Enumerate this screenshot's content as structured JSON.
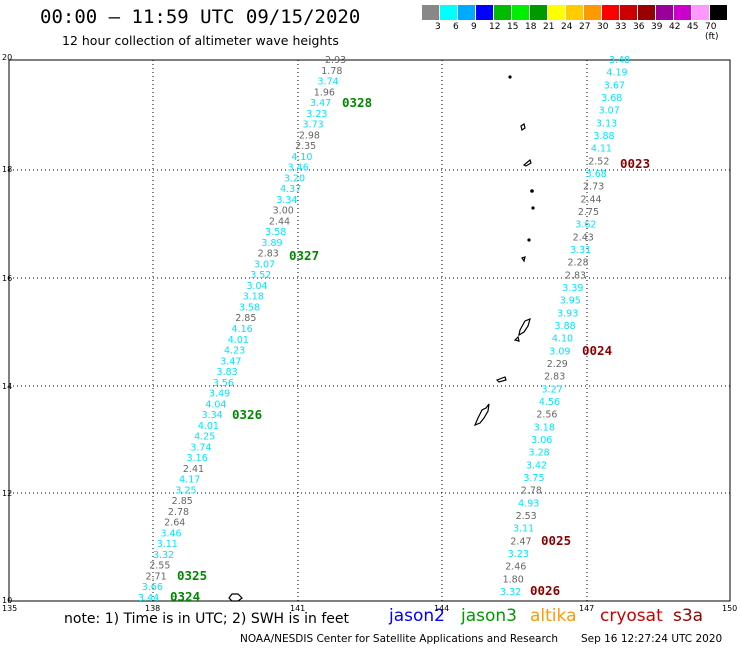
{
  "title": "00:00 — 11:59 UTC 09/15/2020",
  "subtitle": "12 hour collection of altimeter wave heights",
  "legend": {
    "colors": [
      "#888888",
      "#00ffff",
      "#00aaff",
      "#0000ff",
      "#00bb00",
      "#00ee00",
      "#009900",
      "#ffff00",
      "#ffcc00",
      "#ff9900",
      "#ff0000",
      "#cc0000",
      "#990000",
      "#990099",
      "#cc00cc",
      "#ff99ff",
      "#000000"
    ],
    "labels": [
      "3",
      "6",
      "9",
      "12",
      "15",
      "18",
      "21",
      "24",
      "27",
      "30",
      "33",
      "36",
      "39",
      "42",
      "45",
      "70 (ft)"
    ]
  },
  "axes": {
    "lon_ticks": [
      "135",
      "138",
      "141",
      "144",
      "147",
      "150"
    ],
    "lat_ticks": [
      "10",
      "12",
      "14",
      "16",
      "18",
      "20"
    ]
  },
  "note": "note: 1) Time is in UTC; 2) SWH is in feet",
  "satellites": [
    {
      "name": "jason2",
      "color": "#0000ff"
    },
    {
      "name": "jason3",
      "color": "#009900"
    },
    {
      "name": "altika",
      "color": "#ff9900"
    },
    {
      "name": "cryosat",
      "color": "#cc0000"
    },
    {
      "name": "s3a",
      "color": "#990000"
    }
  ],
  "credit": "NOAA/NESDIS Center for Satellite Applications and Research",
  "timestamp": "Sep 16 12:27:24 UTC 2020",
  "track_west": {
    "values": [
      "2.93",
      "1.78",
      "3.74",
      "1.96",
      "3.47",
      "3.23",
      "3.73",
      "2.98",
      "2.35",
      "4.10",
      "3.46",
      "3.20",
      "4.37",
      "3.34",
      "3.00",
      "2.44",
      "3.58",
      "3.89",
      "2.83",
      "3.07",
      "3.52",
      "3.04",
      "3.18",
      "3.58",
      "2.85",
      "4.16",
      "4.01",
      "4.23",
      "3.47",
      "3.83",
      "3.56",
      "3.49",
      "4.04",
      "3.34",
      "4.01",
      "4.25",
      "3.74",
      "3.16",
      "2.41",
      "4.17",
      "3.25",
      "2.85",
      "2.78",
      "2.64",
      "3.46",
      "3.11",
      "3.32",
      "2.55",
      "2.71",
      "3.66",
      "3.44"
    ],
    "colors": [
      "g",
      "g",
      "c",
      "g",
      "c",
      "c",
      "c",
      "g",
      "g",
      "c",
      "c",
      "c",
      "c",
      "c",
      "g",
      "g",
      "c",
      "c",
      "g",
      "c",
      "c",
      "c",
      "c",
      "c",
      "g",
      "c",
      "c",
      "c",
      "c",
      "c",
      "c",
      "c",
      "c",
      "c",
      "c",
      "c",
      "c",
      "c",
      "g",
      "c",
      "c",
      "g",
      "g",
      "g",
      "c",
      "c",
      "c",
      "g",
      "g",
      "c",
      "c"
    ],
    "times": [
      "0328",
      "0327",
      "0326",
      "0325",
      "0324"
    ]
  },
  "track_east": {
    "values": [
      "3.48",
      "4.19",
      "3.67",
      "3.68",
      "3.07",
      "3.13",
      "3.88",
      "4.11",
      "2.52",
      "3.68",
      "2.73",
      "2.44",
      "2.75",
      "3.62",
      "2.43",
      "3.31",
      "2.28",
      "2.83",
      "3.39",
      "3.95",
      "3.93",
      "3.88",
      "4.10",
      "3.09",
      "2.29",
      "2.83",
      "3.27",
      "4.56",
      "2.56",
      "3.18",
      "3.06",
      "3.28",
      "3.42",
      "3.75",
      "2.78",
      "4.93",
      "2.53",
      "3.11",
      "2.47",
      "3.23",
      "2.46",
      "1.80",
      "3.32"
    ],
    "colors": [
      "c",
      "c",
      "c",
      "c",
      "c",
      "c",
      "c",
      "c",
      "g",
      "c",
      "g",
      "g",
      "g",
      "c",
      "g",
      "c",
      "g",
      "g",
      "c",
      "c",
      "c",
      "c",
      "c",
      "c",
      "g",
      "g",
      "c",
      "c",
      "g",
      "c",
      "c",
      "c",
      "c",
      "c",
      "g",
      "c",
      "g",
      "c",
      "g",
      "c",
      "g",
      "g",
      "c"
    ],
    "times": [
      "0023",
      "0024",
      "0025",
      "0026"
    ]
  }
}
